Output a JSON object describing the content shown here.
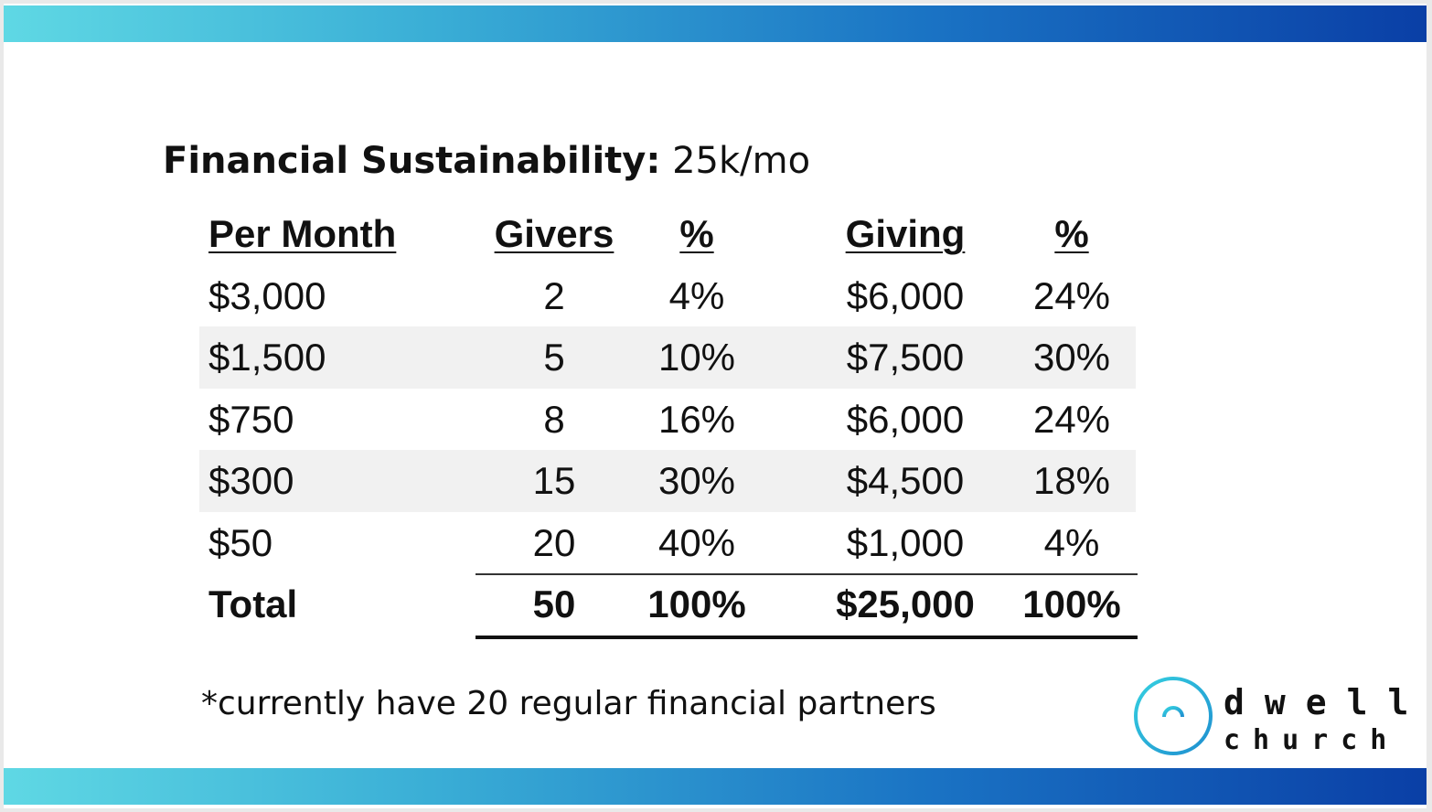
{
  "title": {
    "lead": "Financial Sustainability:",
    "rest": " 25k/mo"
  },
  "table": {
    "headers": [
      "Per Month",
      "Givers",
      "%",
      "Giving",
      "%"
    ],
    "rows": [
      [
        "$3,000",
        "2",
        "4%",
        "$6,000",
        "24%"
      ],
      [
        "$1,500",
        "5",
        "10%",
        "$7,500",
        "30%"
      ],
      [
        "$750",
        "8",
        "16%",
        "$6,000",
        "24%"
      ],
      [
        "$300",
        "15",
        "30%",
        "$4,500",
        "18%"
      ],
      [
        "$50",
        "20",
        "40%",
        "$1,000",
        "4%"
      ]
    ],
    "total": [
      "Total",
      "50",
      "100%",
      "$25,000",
      "100%"
    ]
  },
  "footnote": "*currently have 20 regular financial partners",
  "logo": {
    "line1": "dwell",
    "line2": "church",
    "mark_icon": "sunrise-over-water-icon"
  },
  "colors": {
    "band_start": "#5fd8e4",
    "band_end": "#0a3fa6",
    "row_shade": "#f1f1f1",
    "logo_gradient_start": "#35d0e0",
    "logo_gradient_end": "#1f8fd0"
  }
}
